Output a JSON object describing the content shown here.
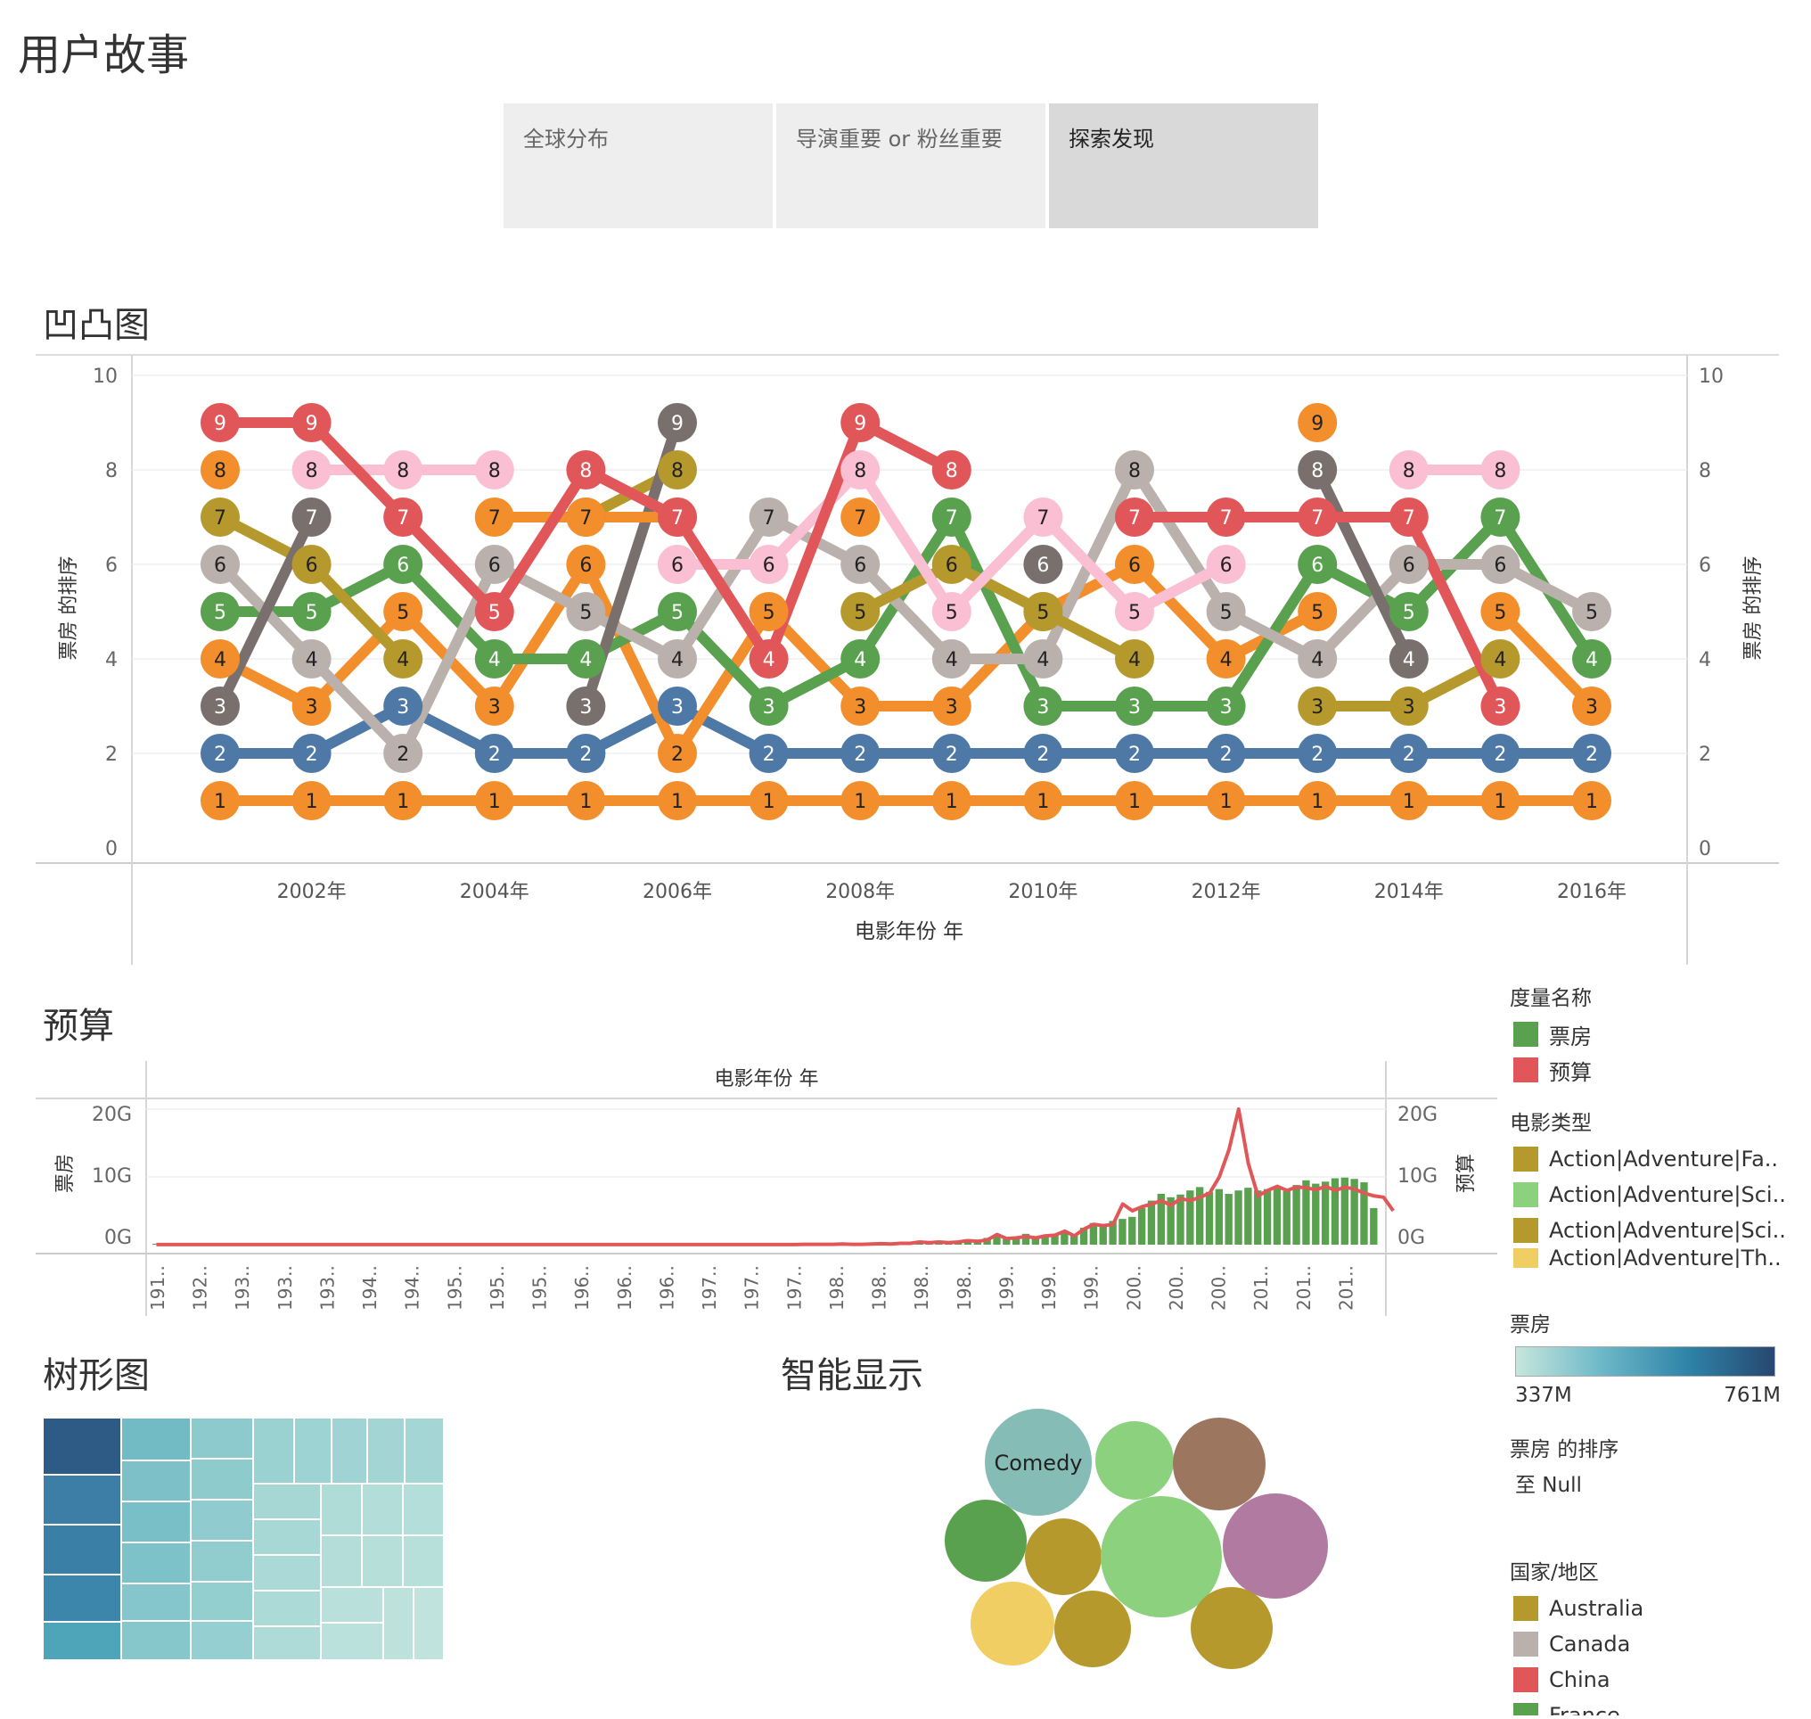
{
  "story": {
    "title": "用户故事",
    "tabs": [
      {
        "label": "全球分布",
        "active": false
      },
      {
        "label": "导演重要 or 粉丝重要",
        "active": false
      },
      {
        "label": "探索发现",
        "active": true
      }
    ]
  },
  "bump": {
    "section_title": "凹凸图",
    "ylabel_left": "票房 的排序",
    "ylabel_right": "票房 的排序",
    "xlabel": "电影年份 年"
  },
  "budget": {
    "section_title": "预算",
    "header": "电影年份 年",
    "ylabel_left": "票房",
    "ylabel_right": "预算",
    "left_ticks": [
      "20G",
      "10G",
      "0G"
    ],
    "right_ticks": [
      "20G",
      "10G",
      "0G"
    ]
  },
  "treemap": {
    "section_title": "树形图"
  },
  "smart": {
    "section_title": "智能显示",
    "bubble_label": "Comedy"
  },
  "legend": {
    "measure": {
      "title": "度量名称",
      "items": [
        {
          "label": "票房",
          "color": "#59a14f"
        },
        {
          "label": "预算",
          "color": "#e15759"
        }
      ]
    },
    "genre": {
      "title": "电影类型",
      "items": [
        {
          "label": "Action|Adventure|Fa..",
          "color": "#b6992d"
        },
        {
          "label": "Action|Adventure|Sci..",
          "color": "#8cd17d"
        },
        {
          "label": "Action|Adventure|Sci..",
          "color": "#b6992d"
        },
        {
          "label": "Action|Adventure|Th..",
          "color": "#f1ce63"
        }
      ]
    },
    "boxoffice": {
      "title": "票房",
      "min": "337M",
      "max": "761M"
    },
    "rank": {
      "title": "票房 的排序",
      "value": "至 Null"
    },
    "country": {
      "title": "国家/地区",
      "items": [
        {
          "label": "Australia",
          "color": "#b6992d"
        },
        {
          "label": "Canada",
          "color": "#bab0ac"
        },
        {
          "label": "China",
          "color": "#e15759"
        },
        {
          "label": "France",
          "color": "#59a14f"
        }
      ]
    }
  },
  "chart_data": [
    {
      "type": "line",
      "chart": "bump",
      "xlabel": "电影年份 年",
      "ylabel": "票房 的排序",
      "ylim": [
        0,
        10
      ],
      "y_ticks": [
        10,
        8,
        6,
        4,
        2,
        0
      ],
      "x_ticks": [
        "2002年",
        "2004年",
        "2006年",
        "2008年",
        "2010年",
        "2012年",
        "2014年",
        "2016年"
      ],
      "x": [
        2001,
        2002,
        2003,
        2004,
        2005,
        2006,
        2007,
        2008,
        2009,
        2010,
        2011,
        2012,
        2013,
        2014,
        2015,
        2016
      ],
      "series": [
        {
          "color": "#f28e2b",
          "values": [
            1,
            1,
            1,
            1,
            1,
            1,
            1,
            1,
            1,
            1,
            1,
            1,
            1,
            1,
            1,
            1
          ]
        },
        {
          "color": "#4e79a7",
          "values": [
            2,
            2,
            3,
            2,
            2,
            3,
            2,
            2,
            2,
            2,
            2,
            2,
            2,
            2,
            2,
            2
          ]
        },
        {
          "color": "#f28e2b",
          "values": [
            4,
            3,
            5,
            3,
            6,
            2,
            5,
            3,
            3,
            5,
            6,
            4,
            5,
            null,
            5,
            3
          ]
        },
        {
          "color": "#59a14f",
          "values": [
            5,
            5,
            6,
            4,
            4,
            5,
            3,
            4,
            7,
            3,
            3,
            3,
            6,
            5,
            7,
            4
          ]
        },
        {
          "color": "#bab0ac",
          "values": [
            6,
            4,
            2,
            6,
            5,
            4,
            7,
            6,
            4,
            4,
            8,
            5,
            4,
            6,
            6,
            5
          ]
        },
        {
          "color": "#b6992d",
          "values": [
            7,
            6,
            4,
            null,
            7,
            8,
            null,
            5,
            6,
            5,
            4,
            null,
            3,
            3,
            4,
            null
          ]
        },
        {
          "color": "#79706e",
          "values": [
            3,
            7,
            null,
            null,
            3,
            9,
            null,
            null,
            null,
            6,
            null,
            null,
            8,
            4,
            null,
            null
          ]
        },
        {
          "color": "#fabfd2",
          "values": [
            null,
            8,
            8,
            8,
            null,
            6,
            6,
            8,
            5,
            7,
            5,
            6,
            null,
            8,
            8,
            null
          ]
        },
        {
          "color": "#f28e2b",
          "values": [
            8,
            null,
            null,
            7,
            7,
            7,
            null,
            7,
            null,
            null,
            null,
            null,
            9,
            null,
            null,
            null
          ]
        },
        {
          "color": "#e15759",
          "values": [
            9,
            9,
            7,
            5,
            8,
            7,
            4,
            9,
            8,
            null,
            7,
            7,
            7,
            7,
            3,
            null
          ]
        }
      ]
    },
    {
      "type": "bar",
      "chart": "budget",
      "title": "电影年份 年",
      "ylabel_left": "票房",
      "ylabel_right": "预算",
      "ylim": [
        0,
        20
      ],
      "unit": "G",
      "x_ticks": [
        "191..",
        "192..",
        "193..",
        "193..",
        "193..",
        "194..",
        "194..",
        "195..",
        "195..",
        "195..",
        "196..",
        "196..",
        "196..",
        "197..",
        "197..",
        "197..",
        "198..",
        "198..",
        "198..",
        "198..",
        "199..",
        "199..",
        "199..",
        "200..",
        "200..",
        "200..",
        "201..",
        "201..",
        "201.."
      ],
      "series": [
        {
          "name": "票房",
          "color": "#59a14f",
          "kind": "bar",
          "values": [
            0.05,
            0.05,
            0.05,
            0.05,
            0.05,
            0.05,
            0.05,
            0.05,
            0.05,
            0.05,
            0.05,
            0.05,
            0.05,
            0.05,
            0.05,
            0.05,
            0.05,
            0.05,
            0.05,
            0.05,
            0.05,
            0.05,
            0.05,
            0.05,
            0.05,
            0.05,
            0.05,
            0.05,
            0.05,
            0.05,
            0.05,
            0.05,
            0.05,
            0.05,
            0.05,
            0.05,
            0.05,
            0.05,
            0.05,
            0.05,
            0.05,
            0.05,
            0.05,
            0.05,
            0.05,
            0.05,
            0.05,
            0.05,
            0.05,
            0.05,
            0.05,
            0.05,
            0.05,
            0.05,
            0.05,
            0.05,
            0.05,
            0.05,
            0.05,
            0.05,
            0.05,
            0.05,
            0.05,
            0.05,
            0.05,
            0.05,
            0.05,
            0.1,
            0.1,
            0.1,
            0.1,
            0.2,
            0.1,
            0.1,
            0.15,
            0.2,
            0.2,
            0.2,
            0.3,
            0.6,
            0.5,
            0.6,
            0.5,
            0.5,
            0.8,
            0.7,
            1.0,
            1.2,
            1.0,
            1.1,
            1.6,
            1.2,
            1.4,
            1.4,
            1.9,
            1.5,
            2.5,
            3.2,
            3.0,
            3.5,
            3.8,
            4.1,
            5.4,
            6.5,
            7.5,
            7.0,
            7.4,
            8.0,
            8.5,
            7.8,
            8.2,
            7.5,
            8.0,
            8.4,
            8.0,
            8.2,
            8.6,
            7.9,
            8.8,
            9.5,
            9.0,
            9.3,
            9.8,
            9.9,
            9.7,
            9.2,
            5.4
          ]
        },
        {
          "name": "预算",
          "color": "#e15759",
          "kind": "line",
          "values": [
            0.02,
            0.02,
            0.02,
            0.02,
            0.02,
            0.02,
            0.02,
            0.02,
            0.02,
            0.02,
            0.02,
            0.02,
            0.02,
            0.02,
            0.02,
            0.02,
            0.02,
            0.02,
            0.02,
            0.02,
            0.02,
            0.02,
            0.02,
            0.02,
            0.02,
            0.02,
            0.02,
            0.02,
            0.02,
            0.02,
            0.02,
            0.02,
            0.02,
            0.02,
            0.02,
            0.02,
            0.02,
            0.02,
            0.02,
            0.02,
            0.02,
            0.02,
            0.02,
            0.02,
            0.02,
            0.02,
            0.02,
            0.02,
            0.02,
            0.02,
            0.02,
            0.02,
            0.02,
            0.02,
            0.02,
            0.02,
            0.02,
            0.02,
            0.02,
            0.02,
            0.02,
            0.02,
            0.02,
            0.02,
            0.02,
            0.02,
            0.02,
            0.05,
            0.05,
            0.05,
            0.05,
            0.1,
            0.05,
            0.05,
            0.1,
            0.15,
            0.1,
            0.2,
            0.2,
            0.4,
            0.3,
            0.4,
            0.3,
            0.4,
            0.6,
            0.5,
            0.7,
            1.5,
            0.9,
            1.0,
            1.2,
            1.0,
            1.3,
            1.4,
            2.0,
            1.3,
            2.3,
            3.0,
            2.8,
            3.0,
            6.0,
            5.0,
            5.6,
            6.0,
            6.5,
            5.8,
            6.8,
            6.5,
            7.0,
            7.6,
            10.0,
            14.0,
            20.0,
            12.0,
            7.2,
            8.0,
            8.6,
            8.0,
            8.5,
            8.4,
            8.1,
            8.6,
            8.0,
            8.5,
            8.2,
            7.6,
            7.2,
            7.0,
            5.0
          ]
        }
      ]
    }
  ]
}
